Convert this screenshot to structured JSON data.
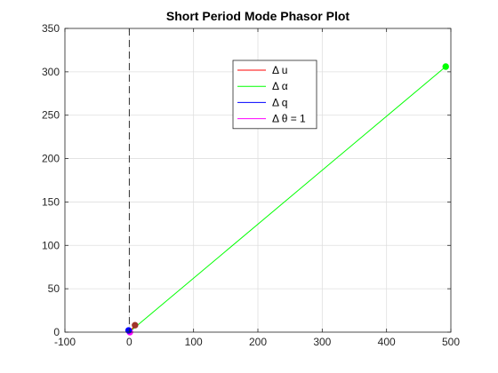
{
  "chart_data": {
    "type": "line",
    "title": "Short Period Mode Phasor Plot",
    "xlabel": "",
    "ylabel": "",
    "xlim": [
      -100,
      500
    ],
    "ylim": [
      0,
      350
    ],
    "xticks": [
      -100,
      0,
      100,
      200,
      300,
      400,
      500
    ],
    "yticks": [
      0,
      50,
      100,
      150,
      200,
      250,
      300,
      350
    ],
    "x_tick_labels": [
      "-100",
      "0",
      "100",
      "200",
      "300",
      "400",
      "500"
    ],
    "y_tick_labels": [
      "0",
      "50",
      "100",
      "150",
      "200",
      "250",
      "300",
      "350"
    ],
    "grid": true,
    "legend_position": "top-right",
    "reference_line": {
      "x": 0,
      "style": "dashed",
      "color": "#000000"
    },
    "series": [
      {
        "name": "Δ u",
        "color": "#ff0000",
        "marker_color": "#a0352a",
        "points": [
          [
            0,
            0
          ],
          [
            9,
            8
          ]
        ]
      },
      {
        "name": "Δ α",
        "color": "#00ff00",
        "marker_color": "#00ff00",
        "points": [
          [
            0,
            0
          ],
          [
            492,
            306
          ]
        ]
      },
      {
        "name": "Δ q",
        "color": "#0000ff",
        "marker_color": "#0000ff",
        "points": [
          [
            0,
            0
          ],
          [
            -1,
            2
          ]
        ]
      },
      {
        "name": "Δ θ = 1",
        "color": "#ff00ff",
        "marker_color": "#ff00ff",
        "points": [
          [
            0,
            0
          ],
          [
            1,
            0
          ]
        ]
      }
    ]
  }
}
